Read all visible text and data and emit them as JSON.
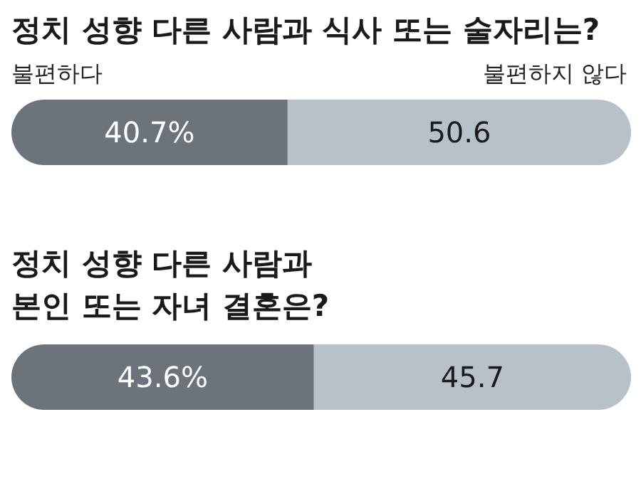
{
  "chart_data": [
    {
      "type": "bar",
      "orientation": "horizontal",
      "stacked": true,
      "title": "정치 성향 다른 사람과 식사 또는 술자리는?",
      "categories": [
        null
      ],
      "legend": "top",
      "series": [
        {
          "name": "불편하다",
          "color": "#6b747b",
          "values": [
            40.7
          ],
          "value_labels": [
            "40.7%"
          ]
        },
        {
          "name": "불편하지 않다",
          "color": "#b6c1c9",
          "values": [
            50.6
          ],
          "value_labels": [
            "50.6"
          ]
        }
      ]
    },
    {
      "type": "bar",
      "orientation": "horizontal",
      "stacked": true,
      "title": "정치 성향 다른 사람과\n본인 또는 자녀 결혼은?",
      "categories": [
        null
      ],
      "series": [
        {
          "color": "#6b747b",
          "values": [
            43.6
          ],
          "value_labels": [
            "43.6%"
          ]
        },
        {
          "color": "#b6c1c9",
          "values": [
            45.7
          ],
          "value_labels": [
            "45.7"
          ]
        }
      ]
    }
  ]
}
